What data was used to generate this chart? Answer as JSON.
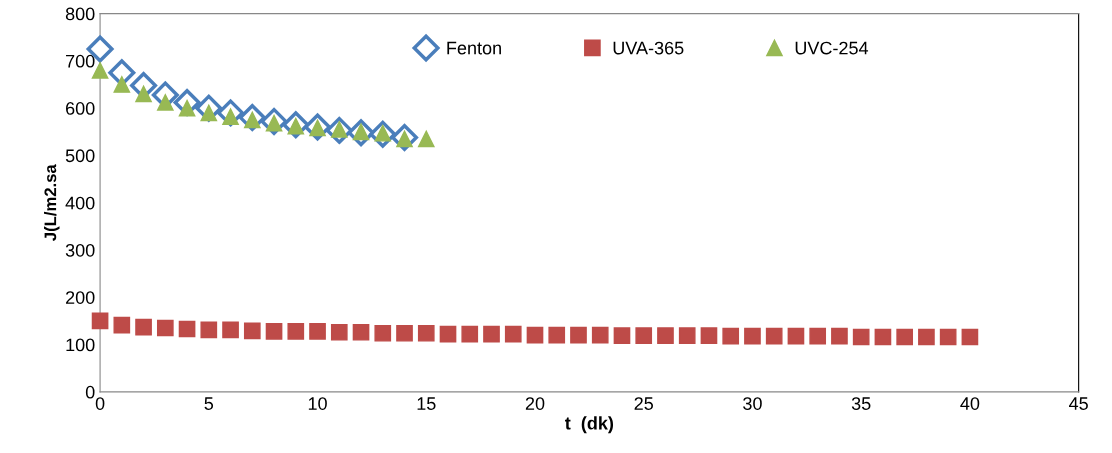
{
  "chart_data": {
    "type": "scatter",
    "xlabel": "t  (dk)",
    "ylabel": "J(L/m2.sa",
    "xlim": [
      0,
      45
    ],
    "xticks": [
      0,
      5,
      10,
      15,
      20,
      25,
      30,
      35,
      40,
      45
    ],
    "ylim": [
      0,
      800
    ],
    "yticks": [
      0,
      100,
      200,
      300,
      400,
      500,
      600,
      700,
      800
    ],
    "grid": false,
    "legend": "top",
    "series": [
      {
        "name": "Fenton",
        "color": "#4a7ebb",
        "marker": "diamond",
        "x": [
          0,
          1,
          2,
          3,
          4,
          5,
          6,
          7,
          8,
          9,
          10,
          11,
          12,
          13,
          14
        ],
        "values": [
          725,
          675,
          648,
          628,
          612,
          600,
          590,
          580,
          572,
          565,
          560,
          553,
          548,
          545,
          538
        ]
      },
      {
        "name": "UVA-365",
        "color": "#be4b48",
        "marker": "square",
        "x": [
          0,
          1,
          2,
          3,
          4,
          5,
          6,
          7,
          8,
          9,
          10,
          11,
          12,
          13,
          14,
          15,
          16,
          17,
          18,
          19,
          20,
          21,
          22,
          23,
          24,
          25,
          26,
          27,
          28,
          29,
          30,
          31,
          32,
          33,
          34,
          35,
          36,
          37,
          38,
          39,
          40
        ],
        "values": [
          150,
          141,
          137,
          135,
          133,
          131,
          131,
          129,
          128,
          128,
          128,
          126,
          126,
          124,
          124,
          124,
          122,
          122,
          122,
          122,
          120,
          120,
          120,
          120,
          119,
          119,
          119,
          119,
          119,
          118,
          118,
          118,
          118,
          118,
          118,
          116,
          116,
          116,
          116,
          116,
          116
        ]
      },
      {
        "name": "UVC-254",
        "color": "#98b954",
        "marker": "triangle",
        "x": [
          0,
          1,
          2,
          3,
          4,
          5,
          6,
          7,
          8,
          9,
          10,
          11,
          12,
          13,
          14,
          15
        ],
        "values": [
          680,
          650,
          630,
          612,
          600,
          590,
          582,
          575,
          568,
          562,
          558,
          555,
          550,
          547,
          535,
          535
        ]
      }
    ]
  }
}
